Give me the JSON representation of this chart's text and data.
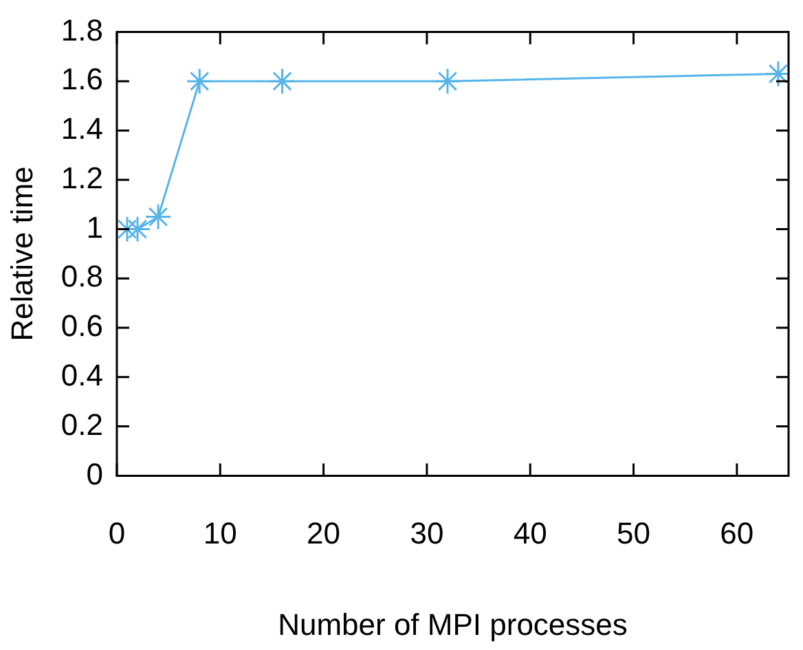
{
  "chart_data": {
    "type": "line",
    "xlabel": "Number of MPI processes",
    "ylabel": "Relative time",
    "x": [
      1,
      2,
      4,
      8,
      16,
      32,
      64
    ],
    "series": [
      {
        "color": "#56b4e9",
        "values": [
          1,
          1,
          1.05,
          1.6,
          1.6,
          1.6,
          1.63
        ]
      }
    ],
    "xlim": [
      0,
      65
    ],
    "xticks": [
      0,
      10,
      20,
      30,
      40,
      50,
      60
    ],
    "ylim": [
      0,
      1.8
    ],
    "yticks": [
      0,
      0.2,
      0.4,
      0.6,
      0.8,
      1,
      1.2,
      1.4,
      1.6,
      1.8
    ],
    "grid": false,
    "legend": false,
    "marker": "cross",
    "line_style": "solid"
  }
}
